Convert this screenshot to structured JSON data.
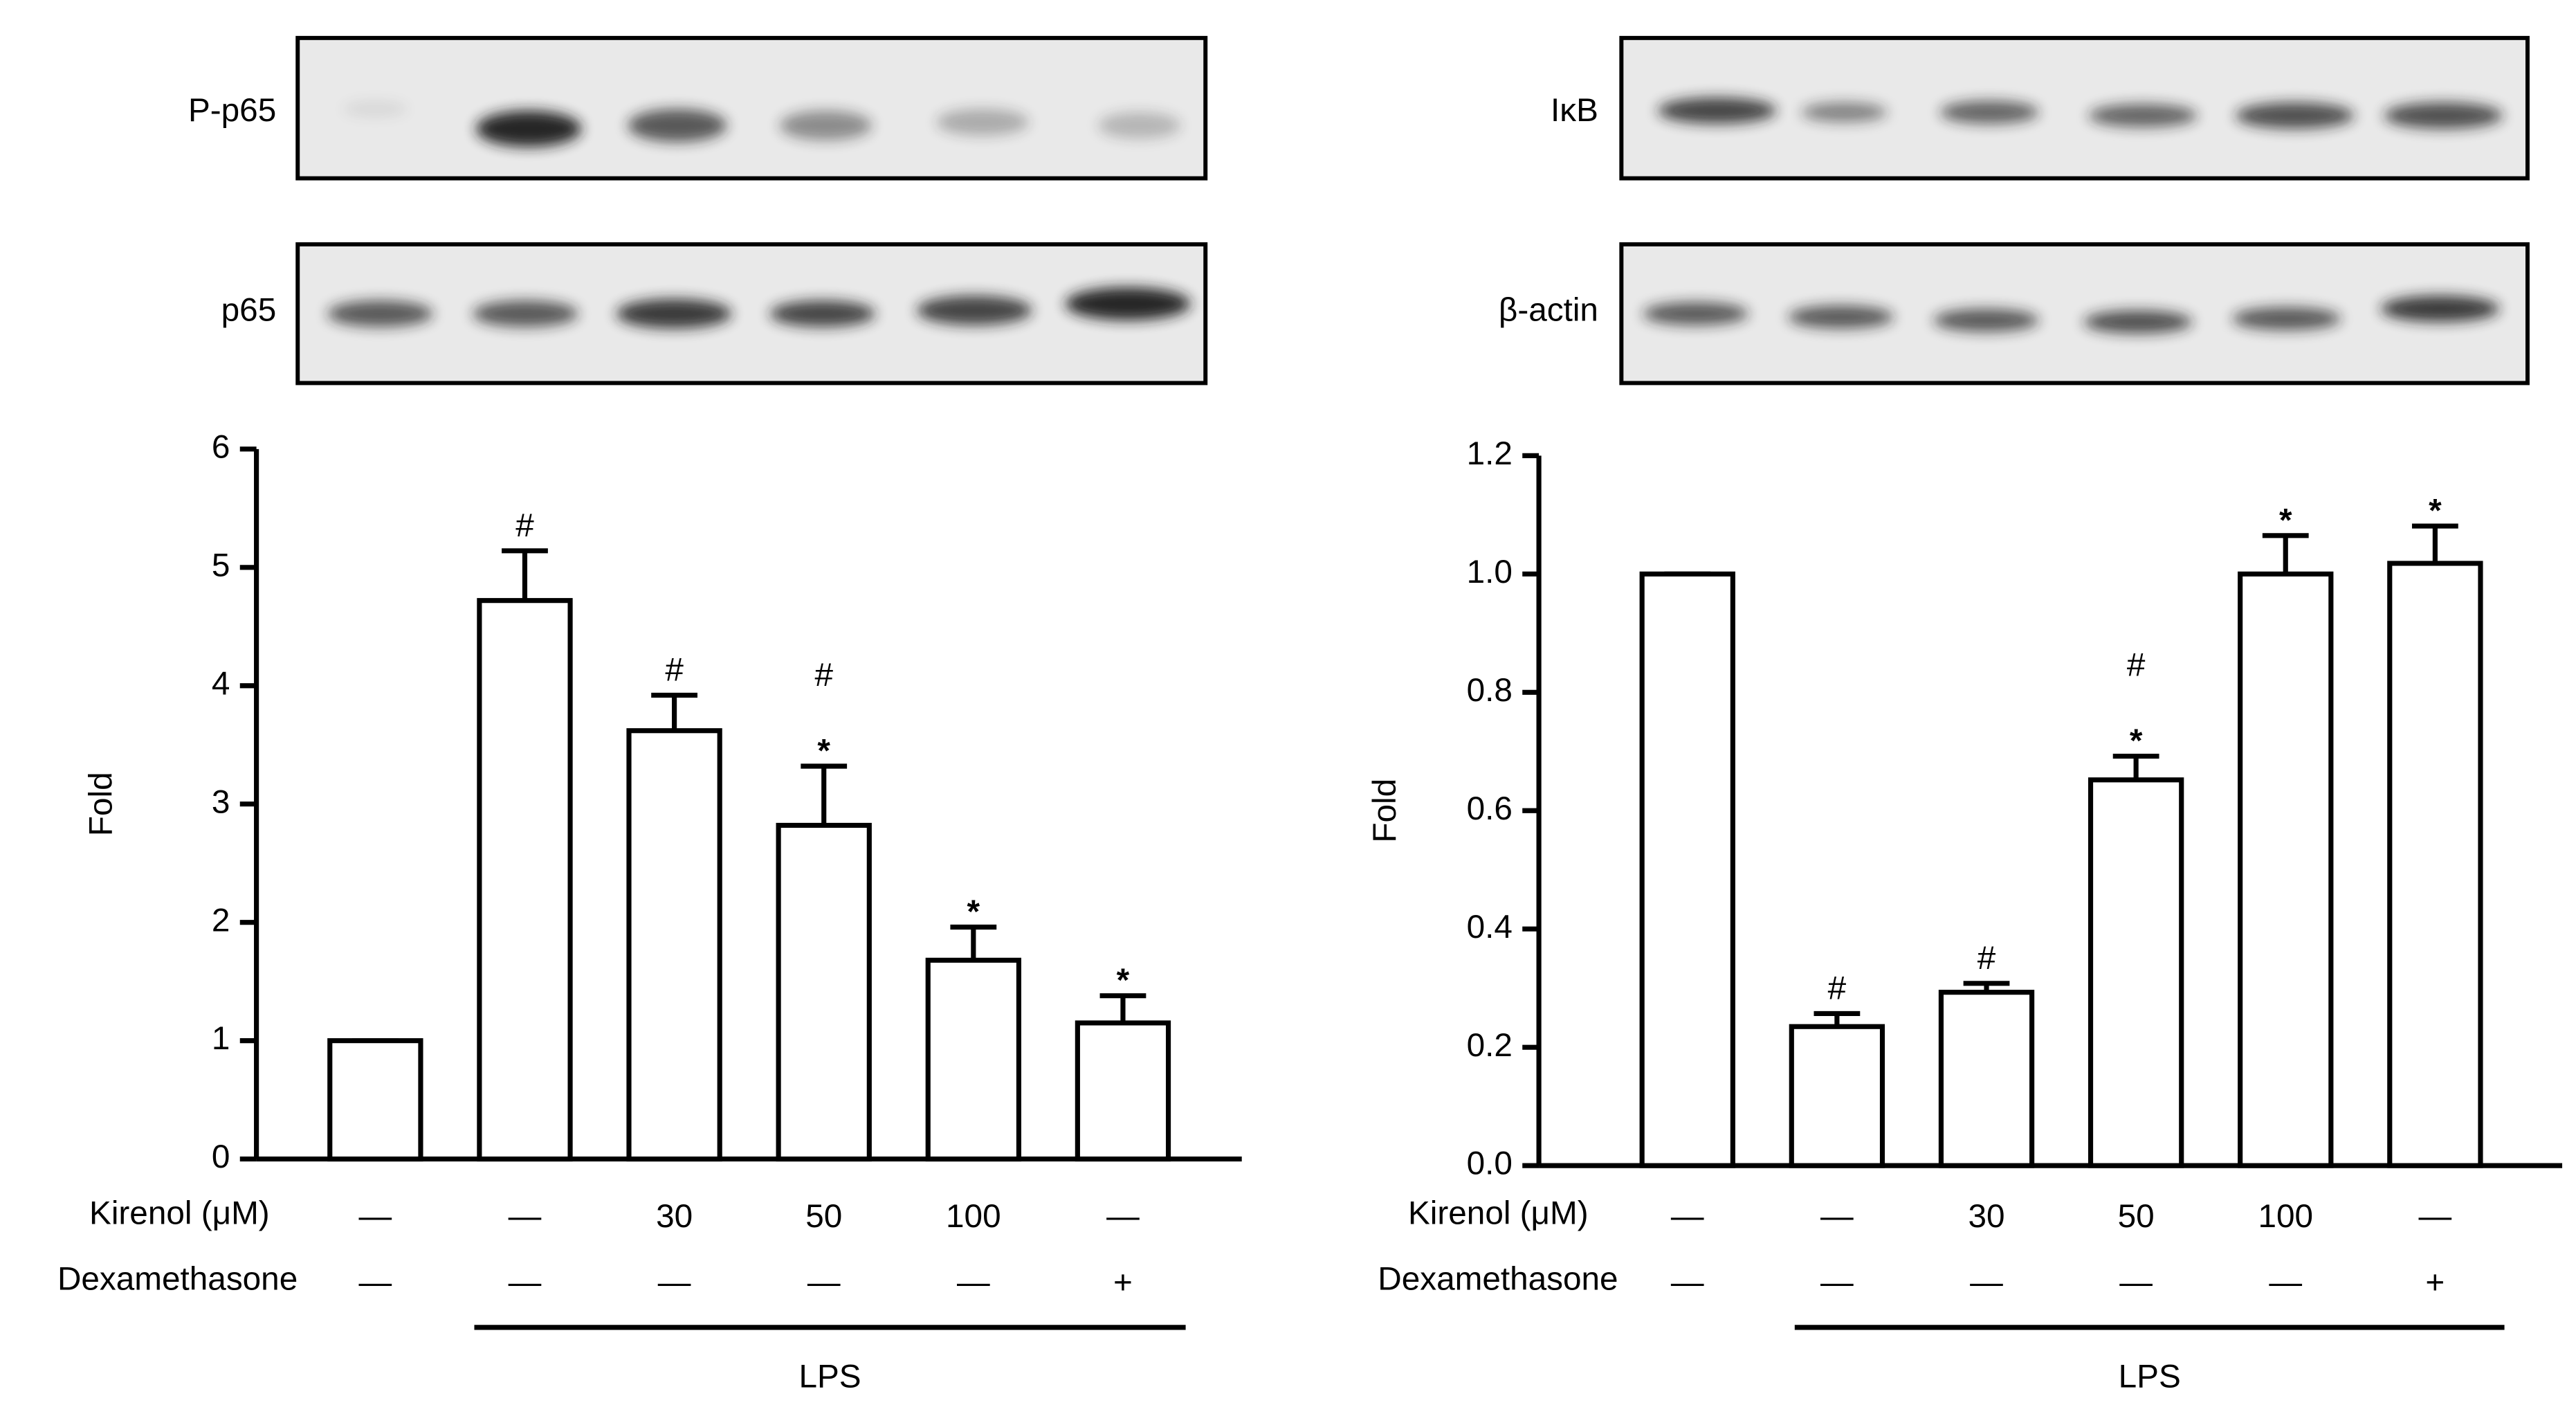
{
  "chart_data": [
    {
      "type": "bar",
      "blots": [
        "P-p65",
        "p65"
      ],
      "ylabel": "Fold",
      "values": [
        1,
        4.72,
        3.62,
        2.82,
        1.68,
        1.15
      ],
      "errors": [
        0,
        0.42,
        0.3,
        0.5,
        0.28,
        0.23
      ],
      "annotations": [
        [],
        [
          "#"
        ],
        [
          "#"
        ],
        [
          "#",
          "*"
        ],
        [
          "*"
        ],
        [
          "*"
        ]
      ],
      "color": "#ffffff",
      "ylim": [
        0,
        6
      ],
      "yticks": [
        0,
        1,
        2,
        3,
        4,
        5,
        6
      ],
      "rows": [
        {
          "label": "Kirenol (μM)",
          "values": [
            "—",
            "—",
            "30",
            "50",
            "100",
            "—"
          ]
        },
        {
          "label": "Dexamethasone",
          "values": [
            "—",
            "—",
            "—",
            "—",
            "—",
            "+"
          ]
        }
      ],
      "group_label": "LPS"
    },
    {
      "type": "bar",
      "blots": [
        "IκB",
        "β-actin"
      ],
      "ylabel": "Fold",
      "values": [
        1,
        0.235,
        0.293,
        0.652,
        1.0,
        1.018
      ],
      "errors": [
        0,
        0.022,
        0.015,
        0.04,
        0.065,
        0.063
      ],
      "annotations": [
        [],
        [
          "#"
        ],
        [
          "#"
        ],
        [
          "#",
          "*"
        ],
        [
          "*"
        ],
        [
          "*"
        ]
      ],
      "color": "#ffffff",
      "ylim": [
        0,
        1.2
      ],
      "yticks": [
        {
          "value": 0,
          "label": "0.0"
        },
        0.2,
        0.4,
        0.6,
        0.8,
        {
          "value": 1,
          "label": "1.0"
        },
        1.2
      ],
      "rows": [
        {
          "label": "Kirenol (μM)",
          "values": [
            "—",
            "—",
            "30",
            "50",
            "100",
            "—"
          ]
        },
        {
          "label": "Dexamethasone",
          "values": [
            "—",
            "—",
            "—",
            "—",
            "—",
            "+"
          ]
        }
      ],
      "group_label": "LPS"
    }
  ]
}
